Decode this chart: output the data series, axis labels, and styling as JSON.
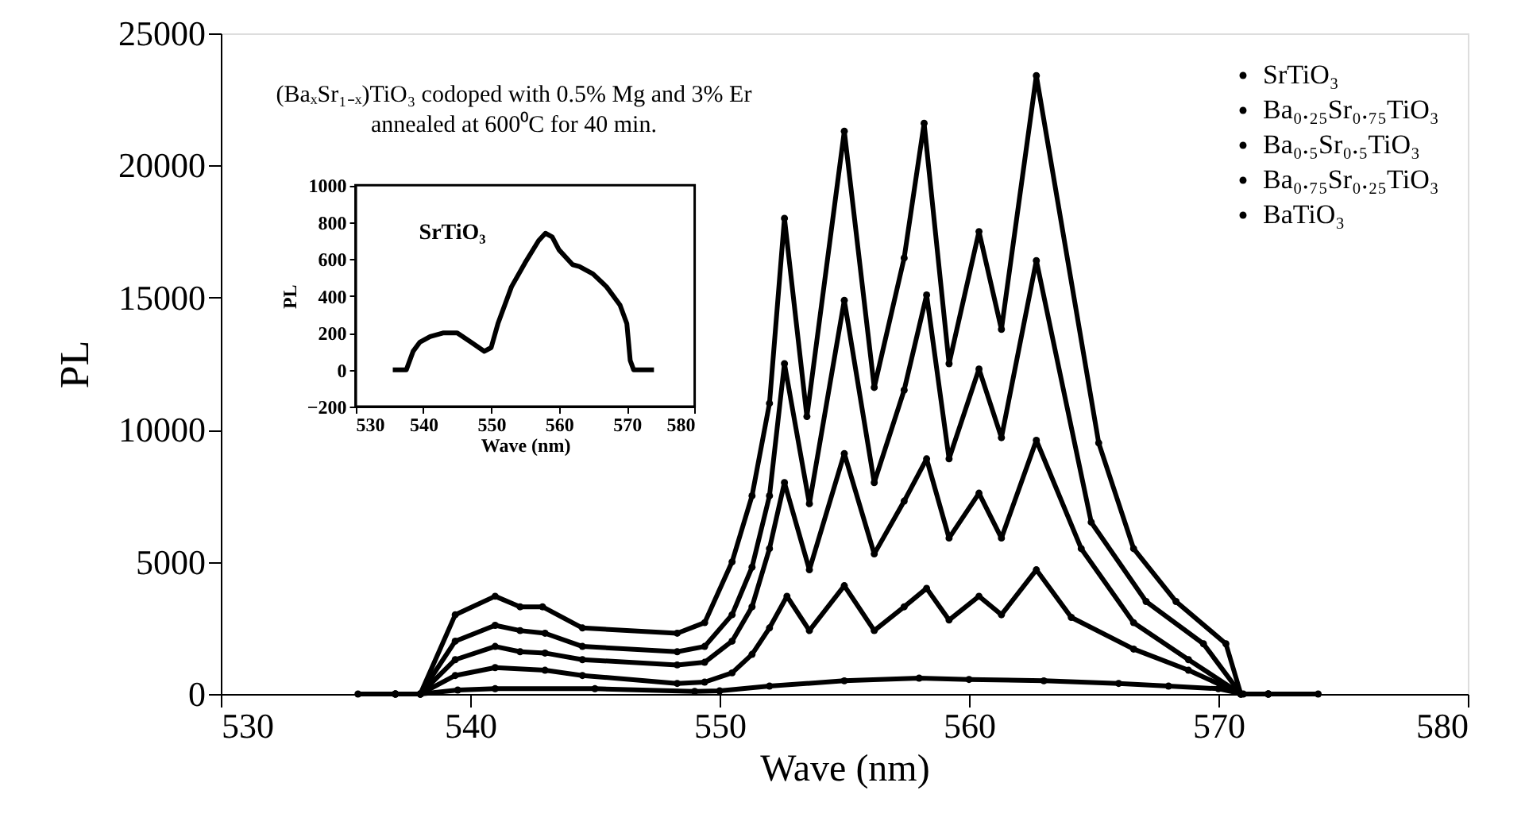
{
  "chart_data": [
    {
      "type": "line",
      "xlabel": "Wave (nm)",
      "ylabel": "PL",
      "annotations": [
        "(BaₓSr₁₋ₓ)TiO₃ codoped with 0.5% Mg and 3% Er",
        "annealed at 600⁰C for 40 min."
      ],
      "xlim": [
        530,
        580
      ],
      "xticks": [
        530,
        540,
        550,
        560,
        570,
        580
      ],
      "ylim": [
        0,
        25000
      ],
      "yticks": [
        0,
        5000,
        10000,
        15000,
        20000,
        25000
      ],
      "grid": false,
      "legend": "top right",
      "marker": "circle",
      "line_style": "solid",
      "series": [
        {
          "name": "SrTiO₃",
          "color": "#000000",
          "x": [
            535.5,
            538,
            539.5,
            541,
            545,
            549,
            550,
            552,
            555,
            558,
            560,
            563,
            566,
            568,
            570,
            571,
            574
          ],
          "values": [
            0,
            0,
            150,
            200,
            200,
            100,
            120,
            300,
            500,
            600,
            550,
            500,
            400,
            300,
            200,
            0,
            0
          ]
        },
        {
          "name": "Ba₀.₂₅Sr₀.₇₅TiO₃",
          "color": "#000000",
          "x": [
            537,
            538,
            539.4,
            541,
            543,
            544.5,
            548.3,
            549.4,
            550.5,
            551.3,
            552,
            552.7,
            553.6,
            555,
            556.2,
            557.4,
            558.3,
            559.2,
            560.4,
            561.3,
            562.7,
            564.1,
            566.6,
            568.8,
            570.9,
            572
          ],
          "values": [
            0,
            0,
            700,
            1000,
            900,
            700,
            400,
            450,
            800,
            1500,
            2500,
            3700,
            2400,
            4100,
            2400,
            3300,
            4000,
            2800,
            3700,
            3000,
            4700,
            2900,
            1700,
            900,
            0,
            0
          ]
        },
        {
          "name": "Ba₀.₅Sr₀.₅TiO₃",
          "color": "#000000",
          "x": [
            537,
            538,
            539.4,
            541,
            542,
            543,
            544.5,
            548.3,
            549.4,
            550.5,
            551.3,
            552,
            552.6,
            553.6,
            555,
            556.2,
            557.4,
            558.3,
            559.2,
            560.4,
            561.3,
            562.7,
            564.5,
            566.6,
            568.8,
            570.9,
            572
          ],
          "values": [
            0,
            0,
            1300,
            1800,
            1600,
            1550,
            1300,
            1100,
            1200,
            2000,
            3300,
            5500,
            8000,
            4700,
            9100,
            5300,
            7300,
            8900,
            5900,
            7600,
            5900,
            9600,
            5500,
            2700,
            1300,
            0,
            0
          ]
        },
        {
          "name": "Ba₀.₇₅Sr₀.₂₅TiO₃",
          "color": "#000000",
          "x": [
            537,
            538,
            539.4,
            541,
            542,
            543,
            544.5,
            548.3,
            549.4,
            550.5,
            551.3,
            552,
            552.6,
            553.6,
            555,
            556.2,
            557.4,
            558.3,
            559.2,
            560.4,
            561.3,
            562.7,
            564.9,
            567.1,
            569.4,
            570.9,
            572
          ],
          "values": [
            0,
            0,
            2000,
            2600,
            2400,
            2300,
            1800,
            1600,
            1800,
            3000,
            4800,
            7500,
            12500,
            7200,
            14900,
            8000,
            11500,
            15100,
            8900,
            12300,
            9700,
            16400,
            6500,
            3500,
            1900,
            0,
            0
          ]
        },
        {
          "name": "BaTiO₃",
          "color": "#000000",
          "x": [
            537,
            538,
            539.4,
            541,
            542,
            542.9,
            544.5,
            548.3,
            549.4,
            550.5,
            551.3,
            552,
            552.6,
            553.5,
            555,
            556.2,
            557.4,
            558.2,
            559.2,
            560.4,
            561.3,
            562.7,
            565.2,
            566.6,
            568.3,
            570.3,
            570.9,
            572
          ],
          "values": [
            0,
            0,
            3000,
            3700,
            3300,
            3300,
            2500,
            2300,
            2700,
            5000,
            7500,
            11000,
            18000,
            10500,
            21300,
            11600,
            16500,
            21600,
            12500,
            17500,
            13800,
            23400,
            9500,
            5500,
            3500,
            1900,
            0,
            0
          ]
        }
      ]
    },
    {
      "type": "line",
      "xlabel": "Wave (nm)",
      "ylabel": "PL",
      "xlim": [
        530,
        580
      ],
      "xticks": [
        530,
        540,
        550,
        560,
        570,
        580
      ],
      "ylim": [
        -200,
        1000
      ],
      "yticks": [
        -200,
        0,
        200,
        400,
        600,
        800,
        1000
      ],
      "grid": false,
      "line_style": "solid",
      "series": [
        {
          "name": "SrTiO₃",
          "color": "#000000",
          "x": [
            535.5,
            537.5,
            538.5,
            539.5,
            541,
            543,
            545,
            547,
            549,
            550,
            551,
            553,
            555,
            557,
            558,
            559,
            560,
            562,
            563,
            565,
            567,
            569,
            570,
            570.5,
            571,
            574
          ],
          "values": [
            0,
            0,
            100,
            150,
            180,
            200,
            200,
            150,
            100,
            120,
            250,
            450,
            580,
            700,
            740,
            720,
            650,
            570,
            560,
            520,
            450,
            350,
            250,
            50,
            0,
            0
          ]
        }
      ]
    }
  ]
}
